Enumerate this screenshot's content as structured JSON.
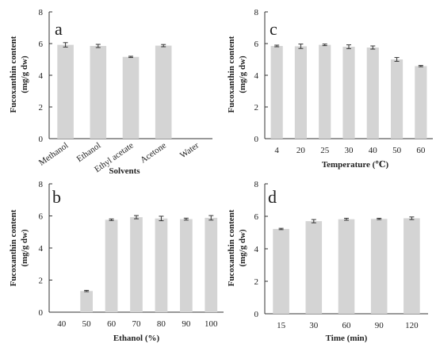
{
  "colors": {
    "bar": "#d4d4d4",
    "axis": "#333333",
    "background": "#ffffff"
  },
  "chart_data": [
    {
      "type": "bar",
      "panel": "a",
      "categories": [
        "Methanol",
        "Ethanol",
        "Ethyl acetate",
        "Acetone",
        "Water"
      ],
      "values": [
        5.92,
        5.85,
        5.16,
        5.87,
        0
      ],
      "errors": [
        0.14,
        0.1,
        0.04,
        0.07,
        0
      ],
      "xlabel": "Solvents",
      "ylabel": "Fucoxanthin content (mg/g dw)",
      "ylabel_lines": [
        "Fucoxanthin content",
        "(mg/g dw)"
      ],
      "ylim": [
        0,
        8
      ],
      "yticks": [
        0,
        2,
        4,
        6,
        8
      ],
      "rotate_categories": true,
      "grid": false,
      "legend": "none"
    },
    {
      "type": "bar",
      "panel": "c",
      "categories": [
        "4",
        "20",
        "25",
        "30",
        "40",
        "50",
        "60"
      ],
      "values": [
        5.85,
        5.83,
        5.92,
        5.8,
        5.75,
        5.0,
        4.58
      ],
      "errors": [
        0.05,
        0.14,
        0.05,
        0.12,
        0.1,
        0.12,
        0.04
      ],
      "xlabel": "Temperature (℃)",
      "ylabel": "Fucoxanthin content (mg/g dw)",
      "ylabel_lines": [
        "Fucoxanthin content",
        "(mg/g dw)"
      ],
      "ylim": [
        0,
        8
      ],
      "yticks": [
        0,
        2,
        4,
        6,
        8
      ],
      "rotate_categories": false,
      "grid": false,
      "legend": "none"
    },
    {
      "type": "bar",
      "panel": "b",
      "categories": [
        "40",
        "50",
        "60",
        "70",
        "80",
        "90",
        "100"
      ],
      "values": [
        0,
        1.32,
        5.76,
        5.92,
        5.84,
        5.8,
        5.88
      ],
      "errors": [
        0,
        0.04,
        0.05,
        0.1,
        0.14,
        0.06,
        0.14
      ],
      "xlabel": "Ethanol (%)",
      "ylabel": "Fucoxanthin content (mg/g dw)",
      "ylabel_lines": [
        "Fucoxanthin content",
        "(mg/g dw)"
      ],
      "ylim": [
        0,
        8
      ],
      "yticks": [
        0,
        2,
        4,
        6,
        8
      ],
      "rotate_categories": false,
      "grid": false,
      "legend": "none"
    },
    {
      "type": "bar",
      "panel": "d",
      "categories": [
        "15",
        "30",
        "60",
        "90",
        "120"
      ],
      "values": [
        5.22,
        5.7,
        5.82,
        5.84,
        5.88
      ],
      "errors": [
        0.04,
        0.1,
        0.06,
        0.04,
        0.08
      ],
      "xlabel": "Time (min)",
      "ylabel": "Fucoxanthin content (mg/g dw)",
      "ylabel_lines": [
        "Fucoxanthin content",
        "(mg/g dw)"
      ],
      "ylim": [
        0,
        8
      ],
      "yticks": [
        0,
        2,
        4,
        6,
        8
      ],
      "rotate_categories": false,
      "grid": false,
      "legend": "none"
    }
  ]
}
